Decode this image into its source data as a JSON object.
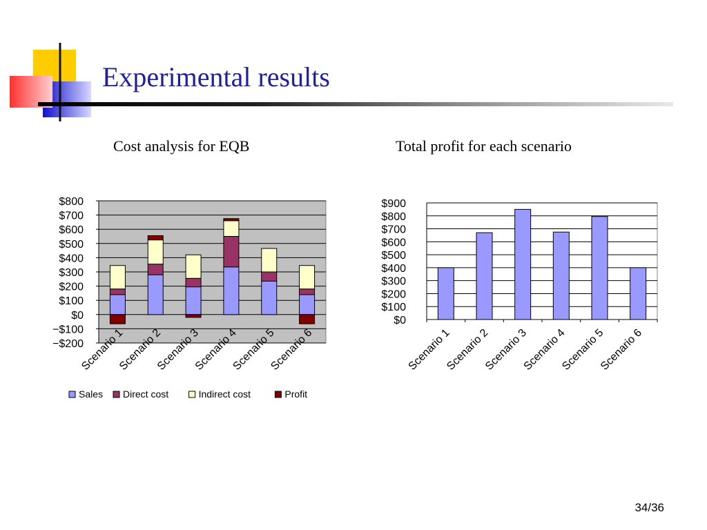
{
  "slide": {
    "title": "Experimental results",
    "page_number": "34/36"
  },
  "colors": {
    "title": "#1f1fa0",
    "sales": "#9999ff",
    "direct_cost": "#993366",
    "indirect_cost": "#ffffcc",
    "profit": "#800000",
    "plot_bg_left": "#c0c0c0",
    "plot_bg_right": "#ffffff"
  },
  "chart_data": [
    {
      "type": "bar",
      "stacked": true,
      "title": "Cost analysis for EQB",
      "categories": [
        "Scenario 1",
        "Scenario 2",
        "Scenario 3",
        "Scenario 4",
        "Scenario 5",
        "Scenario 6"
      ],
      "series": [
        {
          "name": "Sales",
          "color": "#9999ff",
          "values": [
            140,
            280,
            195,
            335,
            235,
            140
          ]
        },
        {
          "name": "Direct cost",
          "color": "#993366",
          "values": [
            40,
            75,
            60,
            215,
            65,
            40
          ]
        },
        {
          "name": "Indirect cost",
          "color": "#ffffcc",
          "values": [
            165,
            170,
            165,
            110,
            165,
            165
          ]
        },
        {
          "name": "Profit",
          "color": "#800000",
          "values": [
            -65,
            30,
            -20,
            15,
            0,
            -65
          ]
        }
      ],
      "ylim": [
        -200,
        800
      ],
      "yticks": [
        -200,
        -100,
        0,
        100,
        200,
        300,
        400,
        500,
        600,
        700,
        800
      ],
      "ytick_labels": [
        "−$200",
        "−$100",
        "$0",
        "$100",
        "$200",
        "$300",
        "$400",
        "$500",
        "$600",
        "$700",
        "$800"
      ],
      "grid": true,
      "legend": "bottom"
    },
    {
      "type": "bar",
      "title": "Total profit for each scenario",
      "categories": [
        "Scenario 1",
        "Scenario 2",
        "Scenario 3",
        "Scenario 4",
        "Scenario 5",
        "Scenario 6"
      ],
      "series": [
        {
          "color": "#9999ff",
          "values": [
            400,
            670,
            850,
            675,
            795,
            400
          ]
        }
      ],
      "ylim": [
        0,
        900
      ],
      "yticks": [
        0,
        100,
        200,
        300,
        400,
        500,
        600,
        700,
        800,
        900
      ],
      "ytick_labels": [
        "$0",
        "$100",
        "$200",
        "$300",
        "$400",
        "$500",
        "$600",
        "$700",
        "$800",
        "$900"
      ],
      "grid": true,
      "legend": "none"
    }
  ]
}
